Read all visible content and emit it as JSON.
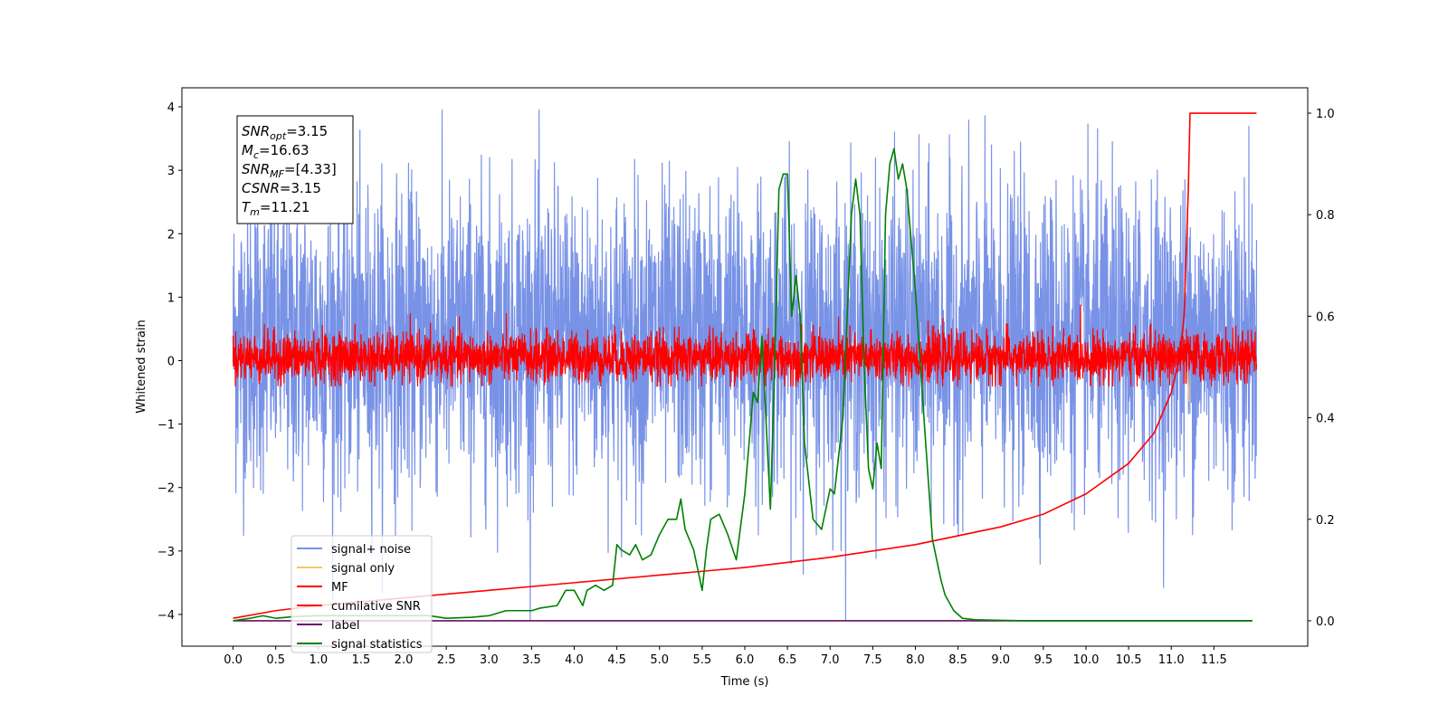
{
  "chart_data": {
    "type": "line",
    "xlabel": "Time (s)",
    "ylabel": "Whitened strain",
    "xlim": [
      -0.6,
      12.6
    ],
    "ylim": [
      -4.5,
      4.3
    ],
    "ylim_right": [
      -0.05,
      1.05
    ],
    "x_ticks": [
      "0.0",
      "0.5",
      "1.0",
      "1.5",
      "2.0",
      "2.5",
      "3.0",
      "3.5",
      "4.0",
      "4.5",
      "5.0",
      "5.5",
      "6.0",
      "6.5",
      "7.0",
      "7.5",
      "8.0",
      "8.5",
      "9.0",
      "9.5",
      "10.0",
      "10.5",
      "11.0",
      "11.5"
    ],
    "y_ticks": [
      "4",
      "3",
      "2",
      "1",
      "0",
      "−1",
      "−2",
      "−3",
      "−4"
    ],
    "y_tick_values": [
      4,
      3,
      2,
      1,
      0,
      -1,
      -2,
      -3,
      -4
    ],
    "y_right_ticks": [
      "1.0",
      "0.8",
      "0.6",
      "0.4",
      "0.2",
      "0.0"
    ],
    "y_right_tick_values": [
      1.0,
      0.8,
      0.6,
      0.4,
      0.2,
      0.0
    ],
    "grid": false,
    "legend_position": "lower-left",
    "annotation": {
      "lines": [
        {
          "name": "SNR",
          "sub": "opt",
          "value": "=3.15"
        },
        {
          "name": "M",
          "sub": "c",
          "value": "=16.63"
        },
        {
          "name": "SNR",
          "sub": "MF",
          "value": "=[4.33]"
        },
        {
          "name": "CSNR",
          "sub": "",
          "value": "=3.15"
        },
        {
          "name": "T",
          "sub": "m",
          "value": "=11.21"
        }
      ]
    },
    "series": [
      {
        "name": "signal+ noise",
        "color": "#7892e6",
        "axis": "left",
        "style": "noise",
        "x_range": [
          0,
          12.0
        ],
        "typical_range": [
          -1.8,
          2.5
        ],
        "extreme_range": [
          -4.1,
          3.95
        ]
      },
      {
        "name": "signal only",
        "color": "#f5c46e",
        "axis": "left",
        "x": [
          11.19,
          11.2,
          11.21
        ],
        "y": [
          -0.2,
          -0.4,
          -0.65
        ]
      },
      {
        "name": "MF",
        "color": "#ff0000",
        "axis": "left",
        "style": "noise",
        "x_range": [
          0,
          12.0
        ],
        "typical_range": [
          -0.3,
          0.4
        ],
        "extreme_range": [
          -0.4,
          1.0
        ]
      },
      {
        "name": "cumilative SNR",
        "color": "#ff0000",
        "axis": "right",
        "x": [
          0,
          0.5,
          1,
          2,
          3,
          4,
          5,
          6,
          7,
          8,
          9,
          9.5,
          10,
          10.5,
          10.8,
          11,
          11.1,
          11.15,
          11.2,
          11.22,
          12.0
        ],
        "y": [
          0.005,
          0.02,
          0.03,
          0.045,
          0.06,
          0.075,
          0.09,
          0.105,
          0.125,
          0.15,
          0.185,
          0.21,
          0.25,
          0.31,
          0.37,
          0.45,
          0.52,
          0.6,
          0.85,
          1.0,
          1.0
        ]
      },
      {
        "name": "label",
        "color": "#6a0d6a",
        "axis": "right",
        "x": [
          0,
          11.95
        ],
        "y": [
          0.0,
          0.0
        ]
      },
      {
        "name": "signal statistics",
        "color": "#008000",
        "axis": "right",
        "x": [
          0,
          0.2,
          0.35,
          0.5,
          0.7,
          1.0,
          1.3,
          1.6,
          1.9,
          2.1,
          2.3,
          2.5,
          2.8,
          3.0,
          3.2,
          3.4,
          3.5,
          3.6,
          3.8,
          3.9,
          4.0,
          4.1,
          4.15,
          4.25,
          4.35,
          4.45,
          4.5,
          4.55,
          4.65,
          4.72,
          4.8,
          4.9,
          5.0,
          5.1,
          5.2,
          5.25,
          5.3,
          5.4,
          5.5,
          5.55,
          5.6,
          5.7,
          5.8,
          5.9,
          6.0,
          6.1,
          6.15,
          6.2,
          6.3,
          6.35,
          6.4,
          6.45,
          6.5,
          6.55,
          6.6,
          6.65,
          6.7,
          6.8,
          6.9,
          7.0,
          7.05,
          7.15,
          7.25,
          7.3,
          7.35,
          7.4,
          7.45,
          7.5,
          7.55,
          7.6,
          7.65,
          7.7,
          7.75,
          7.8,
          7.85,
          7.9,
          7.95,
          8.0,
          8.1,
          8.2,
          8.3,
          8.35,
          8.45,
          8.55,
          8.7,
          9.0,
          9.3,
          10,
          11,
          11.95
        ],
        "y": [
          0.0,
          0.005,
          0.01,
          0.005,
          0.008,
          0.01,
          0.01,
          0.01,
          0.01,
          0.01,
          0.01,
          0.005,
          0.007,
          0.01,
          0.02,
          0.02,
          0.02,
          0.025,
          0.03,
          0.06,
          0.06,
          0.03,
          0.06,
          0.07,
          0.06,
          0.07,
          0.15,
          0.14,
          0.13,
          0.15,
          0.12,
          0.13,
          0.17,
          0.2,
          0.2,
          0.24,
          0.18,
          0.14,
          0.06,
          0.14,
          0.2,
          0.21,
          0.17,
          0.12,
          0.25,
          0.45,
          0.43,
          0.56,
          0.22,
          0.5,
          0.85,
          0.88,
          0.88,
          0.6,
          0.68,
          0.6,
          0.35,
          0.2,
          0.18,
          0.26,
          0.25,
          0.4,
          0.8,
          0.87,
          0.8,
          0.5,
          0.3,
          0.26,
          0.35,
          0.3,
          0.8,
          0.9,
          0.93,
          0.87,
          0.9,
          0.85,
          0.75,
          0.65,
          0.4,
          0.16,
          0.08,
          0.05,
          0.02,
          0.005,
          0.002,
          0.001,
          0.0,
          0.0,
          0.0,
          0.0
        ]
      }
    ]
  }
}
